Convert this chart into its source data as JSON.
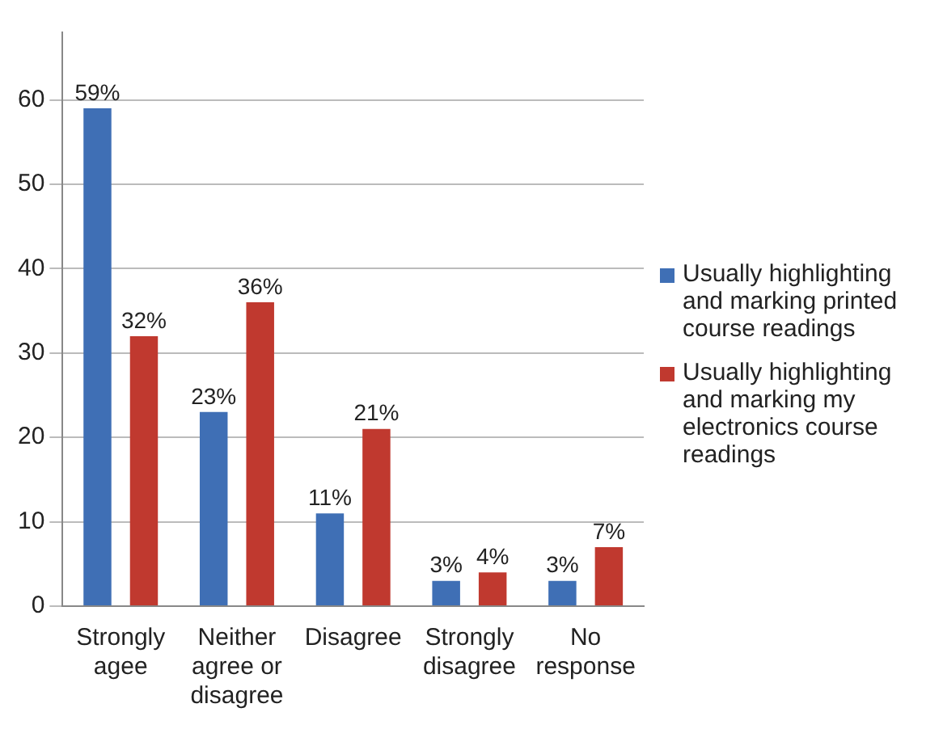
{
  "chart_data": {
    "type": "bar",
    "categories": [
      "Strongly agee",
      "Neither agree or disagree",
      "Disagree",
      "Strongly disagree",
      "No response"
    ],
    "series": [
      {
        "name": "Usually highlighting and marking printed course readings",
        "color": "#3f6fb5",
        "values": [
          59,
          23,
          11,
          3,
          3
        ],
        "value_labels": [
          "59%",
          "23%",
          "11%",
          "3%",
          "3%"
        ]
      },
      {
        "name": "Usually highlighting and marking my electronics course readings",
        "color": "#c0392f",
        "values": [
          32,
          36,
          21,
          4,
          7
        ],
        "value_labels": [
          "32%",
          "36%",
          "21%",
          "4%",
          "7%"
        ]
      }
    ],
    "ylim": [
      0,
      68
    ],
    "yticks": [
      0,
      10,
      20,
      30,
      40,
      50,
      60
    ],
    "grid": "y",
    "legend": "right"
  }
}
